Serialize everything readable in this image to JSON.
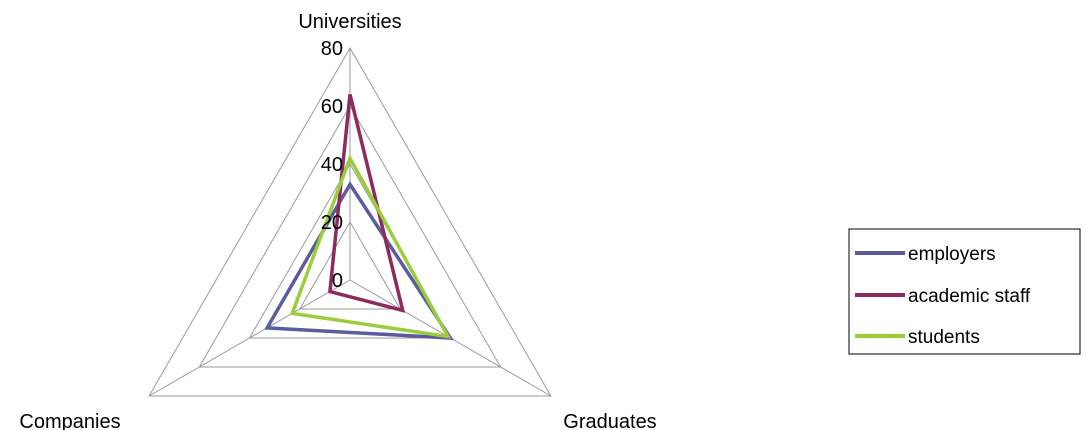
{
  "chart_data": {
    "type": "radar",
    "categories": [
      "Universities",
      "Graduates",
      "Companies"
    ],
    "series": [
      {
        "name": "employers",
        "values": [
          33,
          40,
          33
        ],
        "color": "#5B5B9E"
      },
      {
        "name": "academic staff",
        "values": [
          64,
          21,
          8
        ],
        "color": "#8E2A5E"
      },
      {
        "name": "students",
        "values": [
          42,
          39,
          23
        ],
        "color": "#9ACD3C"
      }
    ],
    "rlim": [
      0,
      80
    ],
    "ticks": [
      0,
      20,
      40,
      60,
      80
    ],
    "grid": true,
    "legend_position": "right"
  }
}
